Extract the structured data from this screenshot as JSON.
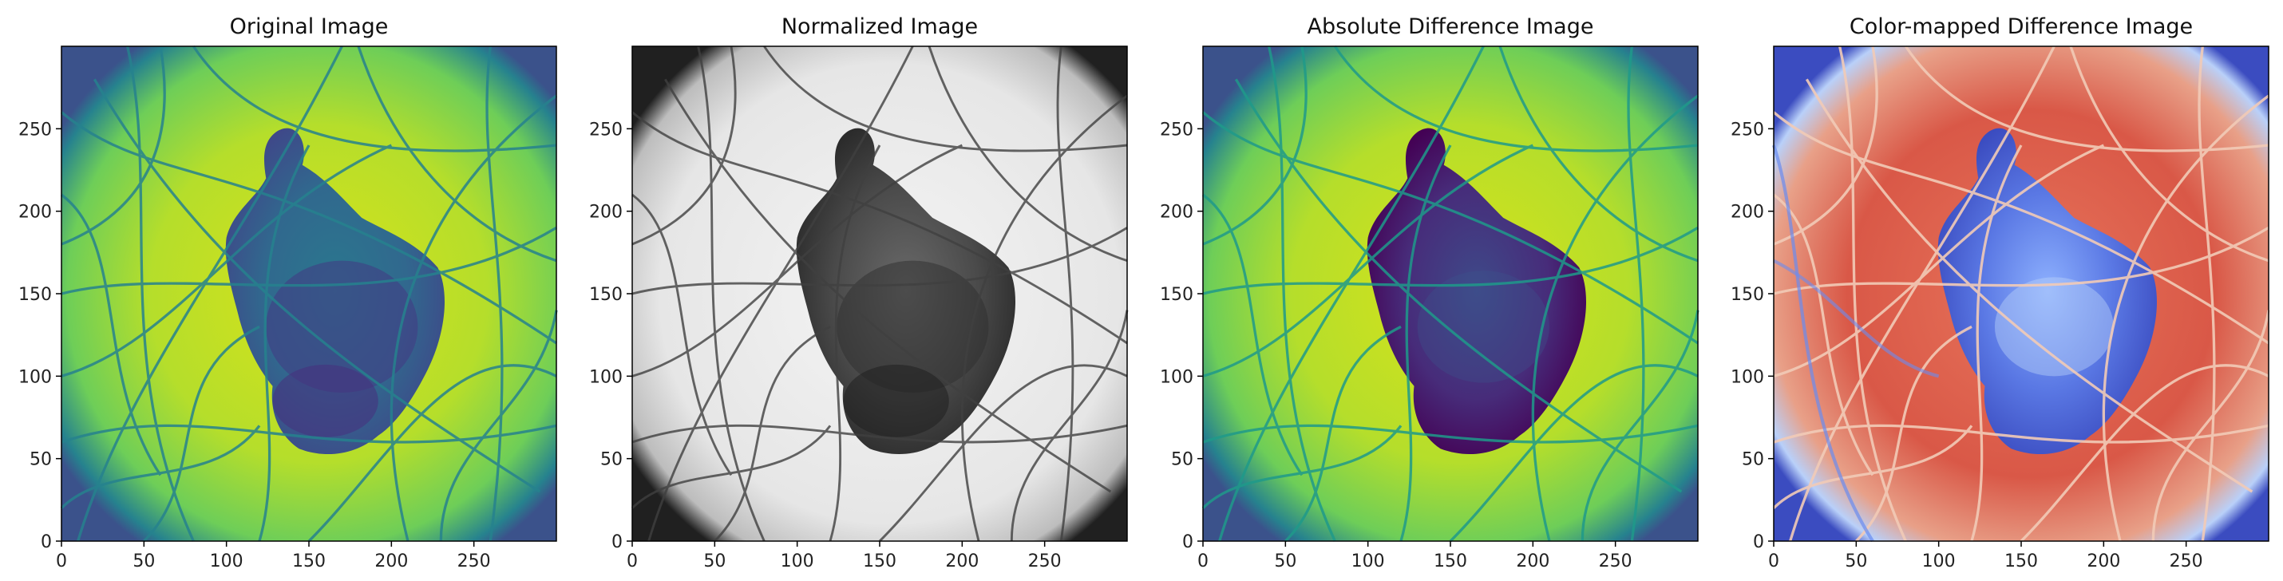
{
  "figure": {
    "panels": [
      {
        "title": "Original Image",
        "colormap": "viridis",
        "x_ticks": [
          "0",
          "50",
          "100",
          "150",
          "200",
          "250"
        ],
        "y_ticks": [
          "0",
          "50",
          "100",
          "150",
          "200",
          "250"
        ]
      },
      {
        "title": "Normalized Image",
        "colormap": "gray",
        "x_ticks": [
          "0",
          "50",
          "100",
          "150",
          "200",
          "250"
        ],
        "y_ticks": [
          "0",
          "50",
          "100",
          "150",
          "200",
          "250"
        ]
      },
      {
        "title": "Absolute Difference Image",
        "colormap": "viridis",
        "x_ticks": [
          "0",
          "50",
          "100",
          "150",
          "200",
          "250"
        ],
        "y_ticks": [
          "0",
          "50",
          "100",
          "150",
          "200",
          "250"
        ]
      },
      {
        "title": "Color-mapped Difference Image",
        "colormap": "coolwarm",
        "x_ticks": [
          "0",
          "50",
          "100",
          "150",
          "200",
          "250"
        ],
        "y_ticks": [
          "0",
          "50",
          "100",
          "150",
          "200",
          "250"
        ]
      }
    ],
    "image_size": 300,
    "colors": {
      "viridis_dark": "#440154",
      "viridis_mid": "#21918c",
      "viridis_bright": "#fde725",
      "gray_dark": "#1a1a1a",
      "gray_bright": "#f2f2f2",
      "coolwarm_blue": "#3b4cc0",
      "coolwarm_light": "#c8d4f0",
      "coolwarm_red": "#c83a2e"
    }
  }
}
